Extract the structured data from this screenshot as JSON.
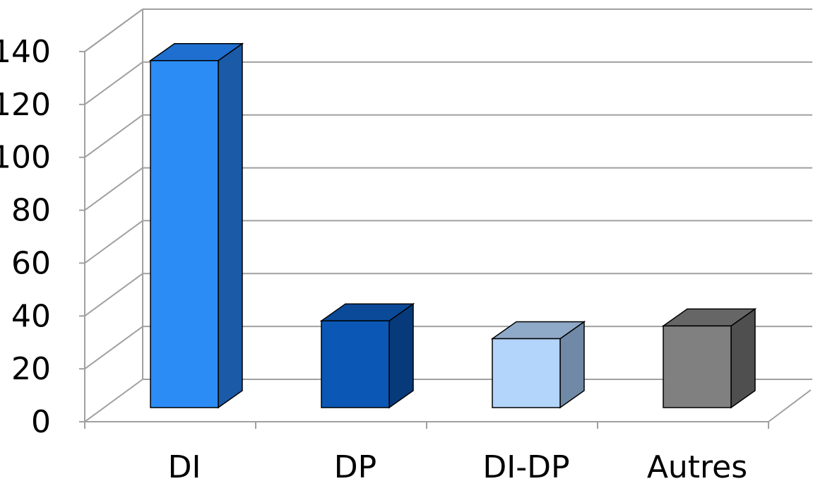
{
  "chart_data": {
    "type": "bar",
    "categories": [
      "DI",
      "DP",
      "DI-DP",
      "Autres"
    ],
    "values": [
      136,
      34,
      27,
      32
    ],
    "ylim": [
      0,
      140
    ],
    "yticks": [
      "0",
      "20",
      "40",
      "60",
      "80",
      "100",
      "120",
      "140"
    ],
    "grid": true,
    "three_d": true,
    "legend": "none",
    "bar_colors": [
      {
        "front": "#2b8cf6",
        "side": "#1a5aa6",
        "top": "#1f6fd0"
      },
      {
        "front": "#0b57b5",
        "side": "#073a7a",
        "top": "#0a4a98"
      },
      {
        "front": "#b3d4fb",
        "side": "#6f89a6",
        "top": "#8fa9c8"
      },
      {
        "front": "#808080",
        "side": "#4f4f4f",
        "top": "#666666"
      }
    ],
    "colors": {
      "grid": "#a0a0a0",
      "axis": "#a0a0a0"
    }
  }
}
